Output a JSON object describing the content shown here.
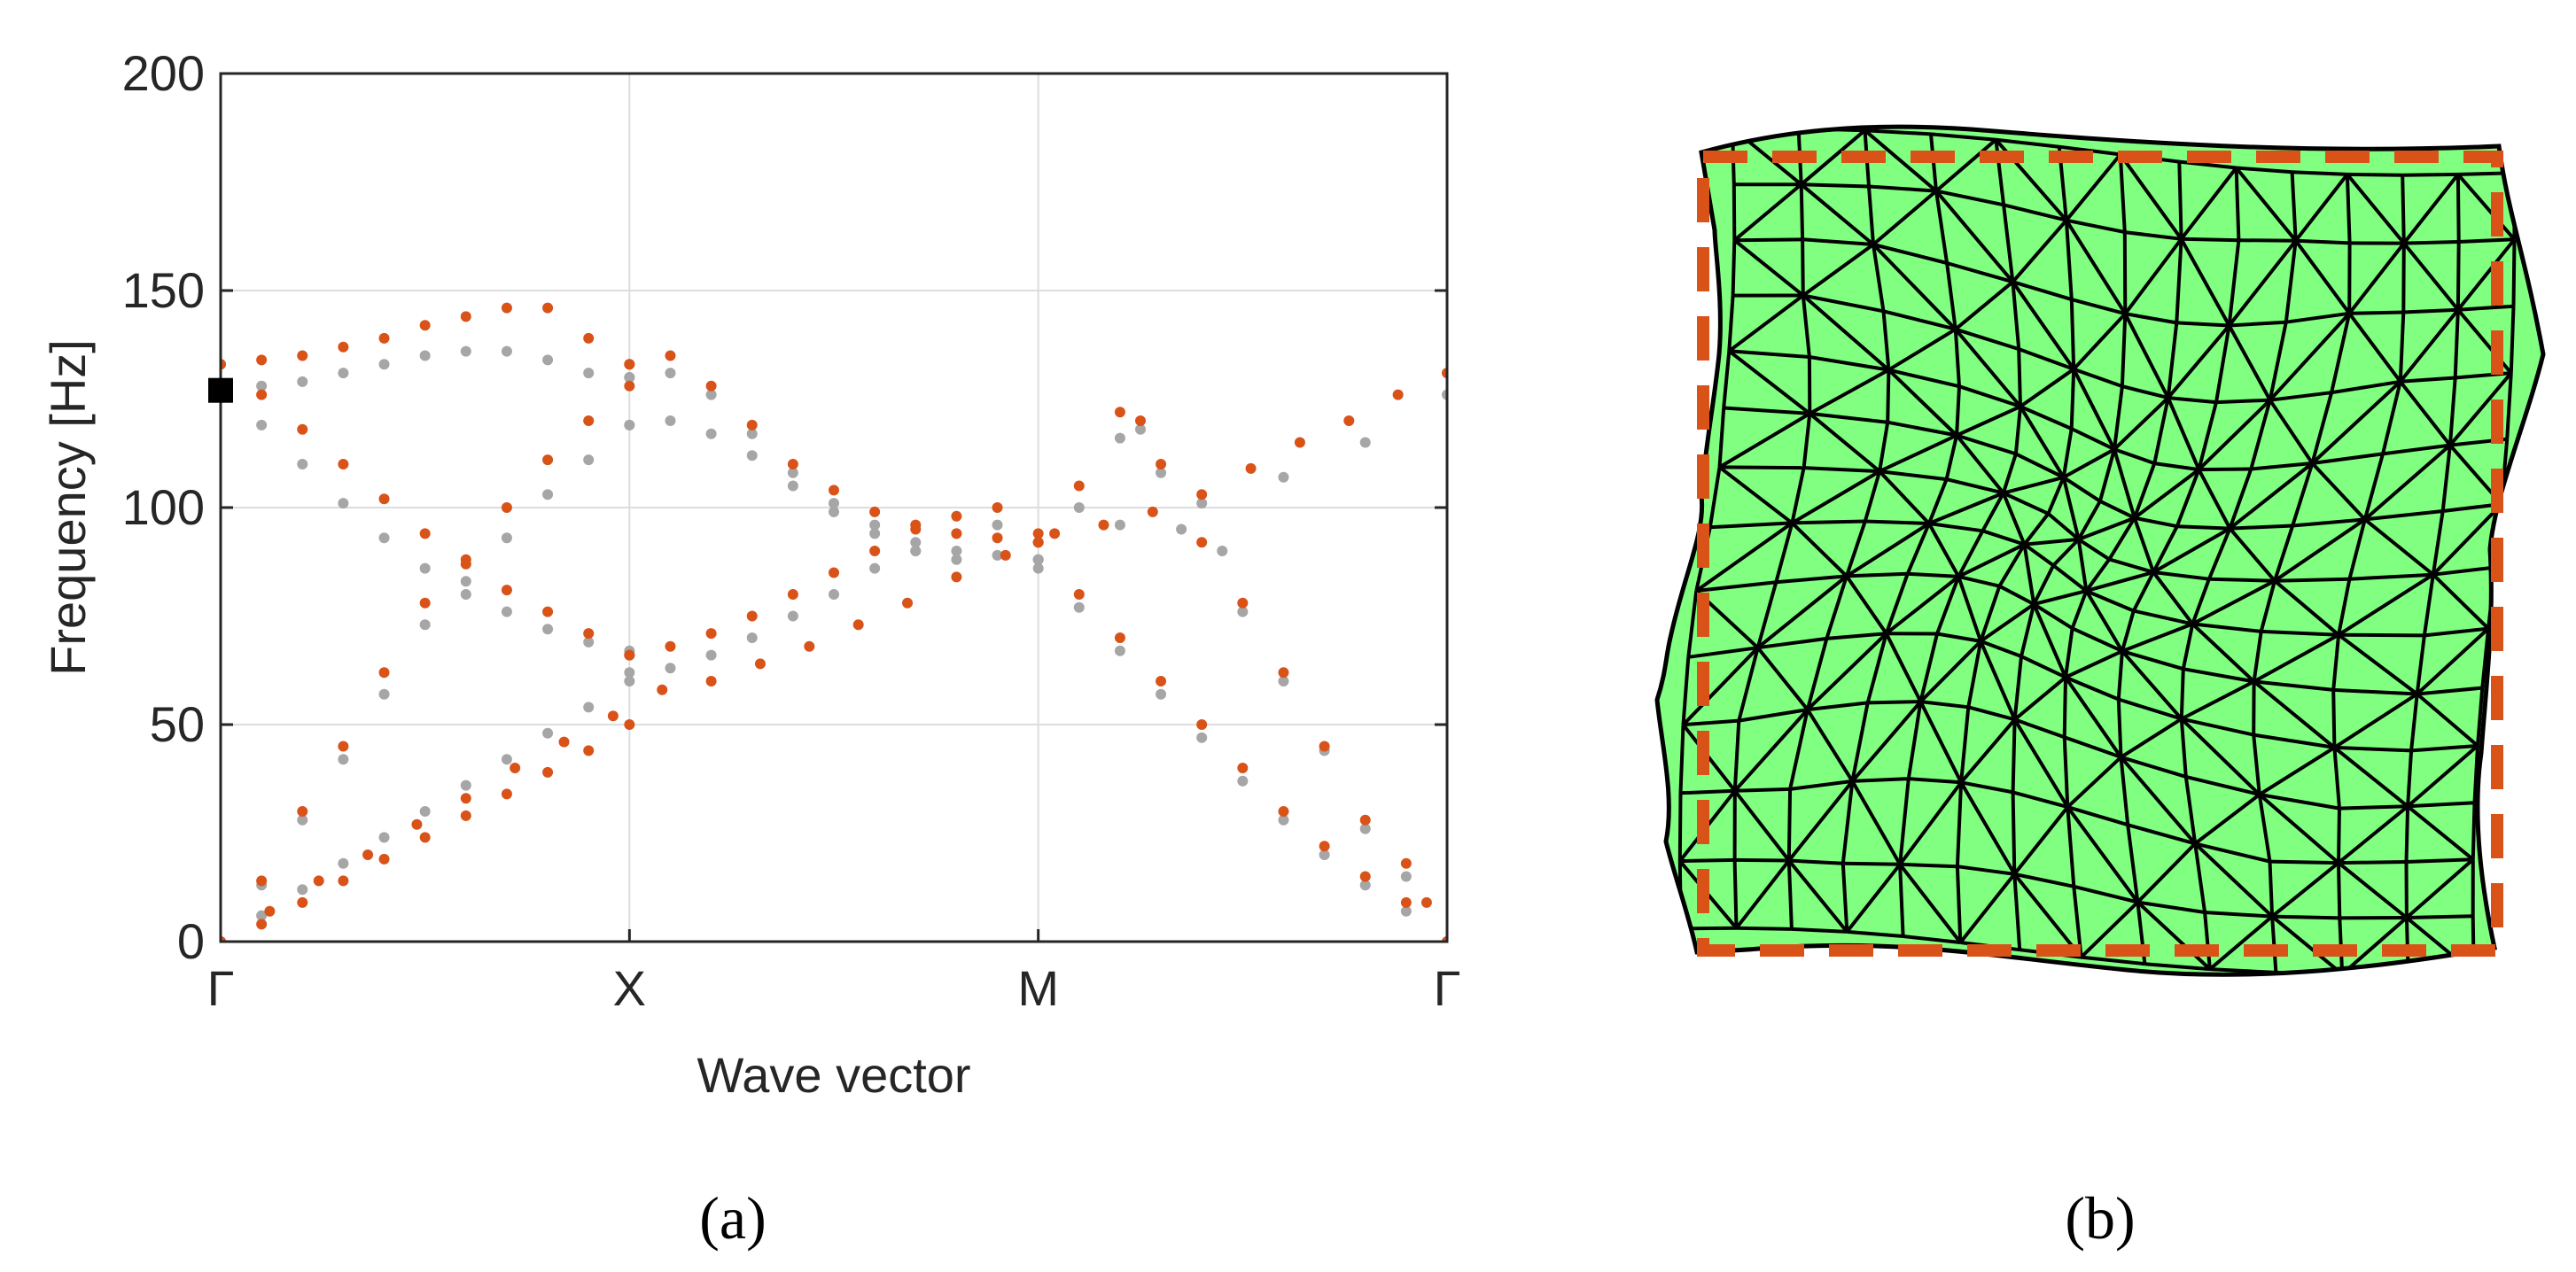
{
  "chart_data": {
    "type": "scatter",
    "title": "",
    "xlabel": "Wave vector",
    "ylabel": "Frequency [Hz]",
    "ylim": [
      0,
      200
    ],
    "yticks": [
      0,
      50,
      100,
      150,
      200
    ],
    "x_tick_labels": [
      "Γ",
      "X",
      "M",
      "Γ"
    ],
    "xlim": [
      0,
      3
    ],
    "grid": true,
    "highlight_marker": {
      "x": 0,
      "y": 127,
      "shape": "square",
      "color": "#000000"
    },
    "colors": {
      "deformed": "#D95319",
      "reference": "#A6A6A6"
    },
    "series": [
      {
        "name": "deformed",
        "color": "#D95319",
        "bands": [
          [
            [
              0,
              0
            ],
            [
              0.2,
              7
            ],
            [
              0.4,
              14
            ],
            [
              0.6,
              20
            ],
            [
              0.8,
              27
            ],
            [
              1,
              33
            ],
            [
              1.2,
              40
            ],
            [
              1.4,
              46
            ],
            [
              1.6,
              52
            ],
            [
              1.8,
              58
            ],
            [
              2,
              60
            ],
            [
              2.2,
              64
            ],
            [
              2.4,
              68
            ],
            [
              2.6,
              73
            ],
            [
              2.8,
              78
            ],
            [
              3,
              84
            ],
            [
              3.2,
              89
            ],
            [
              3.4,
              94
            ],
            [
              3.6,
              96
            ],
            [
              3.8,
              99
            ],
            [
              4,
              103
            ],
            [
              4.2,
              109
            ],
            [
              4.4,
              115
            ],
            [
              4.6,
              120
            ],
            [
              4.8,
              126
            ],
            [
              5,
              131
            ]
          ],
          [
            [
              0,
              0
            ],
            [
              0.2,
              4
            ],
            [
              0.4,
              9
            ],
            [
              0.6,
              14
            ],
            [
              0.8,
              19
            ],
            [
              1,
              24
            ],
            [
              1.2,
              29
            ],
            [
              1.4,
              34
            ],
            [
              1.6,
              39
            ],
            [
              1.8,
              44
            ],
            [
              2,
              50
            ]
          ],
          [
            [
              0,
              133
            ],
            [
              0.2,
              126
            ],
            [
              0.4,
              118
            ],
            [
              0.6,
              110
            ],
            [
              0.8,
              102
            ],
            [
              1,
              94
            ],
            [
              1.2,
              87
            ],
            [
              1.4,
              81
            ],
            [
              1.6,
              76
            ],
            [
              1.8,
              71
            ],
            [
              2,
              66
            ]
          ],
          [
            [
              0,
              133
            ],
            [
              0.2,
              134
            ],
            [
              0.4,
              135
            ],
            [
              0.6,
              137
            ],
            [
              0.8,
              139
            ],
            [
              1,
              142
            ],
            [
              1.2,
              144
            ],
            [
              1.4,
              146
            ],
            [
              1.6,
              146
            ],
            [
              1.8,
              139
            ],
            [
              2,
              133
            ]
          ],
          [
            [
              0,
              0
            ],
            [
              0.2,
              14
            ],
            [
              0.4,
              30
            ],
            [
              0.6,
              45
            ],
            [
              0.8,
              62
            ],
            [
              1,
              78
            ],
            [
              1.2,
              88
            ],
            [
              1.4,
              100
            ],
            [
              1.6,
              111
            ],
            [
              1.8,
              120
            ],
            [
              2,
              128
            ]
          ]
        ]
      },
      {
        "name": "reference",
        "color": "#A6A6A6",
        "bands": [
          [
            [
              0,
              0
            ],
            [
              0.2,
              6
            ],
            [
              0.4,
              12
            ],
            [
              0.6,
              18
            ],
            [
              0.8,
              24
            ],
            [
              1,
              30
            ],
            [
              1.2,
              36
            ],
            [
              1.4,
              42
            ],
            [
              1.6,
              48
            ],
            [
              1.8,
              54
            ],
            [
              2,
              60
            ]
          ],
          [
            [
              0,
              126
            ],
            [
              0.2,
              128
            ],
            [
              0.4,
              129
            ],
            [
              0.6,
              131
            ],
            [
              0.8,
              133
            ],
            [
              1,
              135
            ],
            [
              1.2,
              136
            ],
            [
              1.4,
              136
            ],
            [
              1.6,
              134
            ],
            [
              1.8,
              131
            ],
            [
              2,
              130
            ]
          ],
          [
            [
              0,
              126
            ],
            [
              0.2,
              119
            ],
            [
              0.4,
              110
            ],
            [
              0.6,
              101
            ],
            [
              0.8,
              93
            ],
            [
              1,
              86
            ],
            [
              1.2,
              80
            ],
            [
              1.4,
              76
            ],
            [
              1.6,
              72
            ],
            [
              1.8,
              69
            ],
            [
              2,
              67
            ]
          ],
          [
            [
              0,
              0
            ],
            [
              0.2,
              13
            ],
            [
              0.4,
              28
            ],
            [
              0.6,
              42
            ],
            [
              0.8,
              57
            ],
            [
              1,
              73
            ],
            [
              1.2,
              83
            ],
            [
              1.4,
              93
            ],
            [
              1.6,
              103
            ],
            [
              1.8,
              111
            ],
            [
              2,
              119
            ]
          ]
        ]
      }
    ]
  },
  "panels": {
    "a_label": "(a)",
    "b_label": "(b)"
  },
  "mesh": {
    "fill_color": "#80FF80",
    "edge_color": "#000000",
    "reference_outline_color": "#D95319"
  }
}
